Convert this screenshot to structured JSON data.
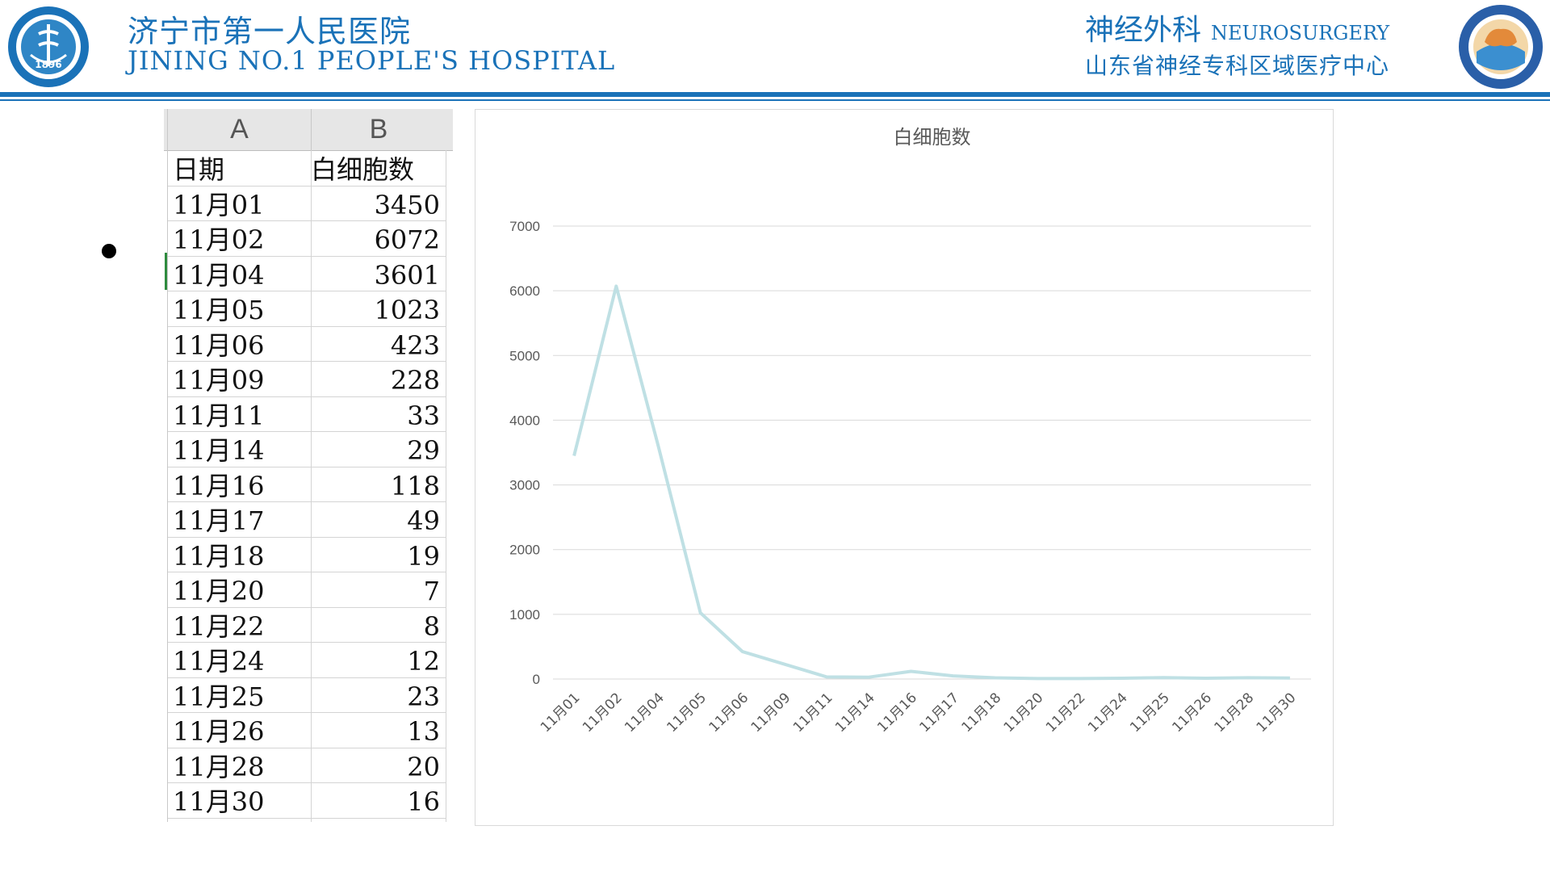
{
  "header": {
    "hospital_cn": "济宁市第一人民医院",
    "hospital_en": "JINING NO.1 PEOPLE'S HOSPITAL",
    "dept_cn": "神经外科",
    "dept_en": "NEUROSURGERY",
    "dept_sub": "山东省神经专科区域医疗中心",
    "logo_left_year": "1896"
  },
  "colors": {
    "brand_blue": "#1a72b8",
    "series_line": "#bfe0e4"
  },
  "bullet": {
    "text_left": "",
    "text_right": ""
  },
  "sheet": {
    "col_headers": [
      "A",
      "B"
    ],
    "field_headers": [
      "日期",
      "白细胞数"
    ],
    "rows": [
      [
        "11月01",
        "3450"
      ],
      [
        "11月02",
        "6072"
      ],
      [
        "11月04",
        "3601"
      ],
      [
        "11月05",
        "1023"
      ],
      [
        "11月06",
        "423"
      ],
      [
        "11月09",
        "228"
      ],
      [
        "11月11",
        "33"
      ],
      [
        "11月14",
        "29"
      ],
      [
        "11月16",
        "118"
      ],
      [
        "11月17",
        "49"
      ],
      [
        "11月18",
        "19"
      ],
      [
        "11月20",
        "7"
      ],
      [
        "11月22",
        "8"
      ],
      [
        "11月24",
        "12"
      ],
      [
        "11月25",
        "23"
      ],
      [
        "11月26",
        "13"
      ],
      [
        "11月28",
        "20"
      ],
      [
        "11月30",
        "16"
      ]
    ]
  },
  "chart_data": {
    "type": "line",
    "title": "白细胞数",
    "xlabel": "",
    "ylabel": "",
    "ylim": [
      0,
      7000
    ],
    "yticks": [
      0,
      1000,
      2000,
      3000,
      4000,
      5000,
      6000,
      7000
    ],
    "grid": true,
    "legend": "none",
    "categories": [
      "11月01",
      "11月02",
      "11月04",
      "11月05",
      "11月06",
      "11月09",
      "11月11",
      "11月14",
      "11月16",
      "11月17",
      "11月18",
      "11月20",
      "11月22",
      "11月24",
      "11月25",
      "11月26",
      "11月28",
      "11月30"
    ],
    "series": [
      {
        "values": [
          3450,
          6072,
          3601,
          1023,
          423,
          228,
          33,
          29,
          118,
          49,
          19,
          7,
          8,
          12,
          23,
          13,
          20,
          16
        ]
      }
    ]
  }
}
